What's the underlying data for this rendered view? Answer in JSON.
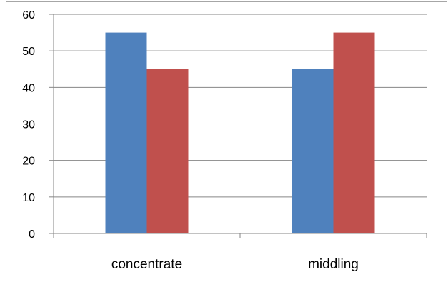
{
  "chart_data": {
    "type": "bar",
    "categories": [
      "concentrate",
      "middling"
    ],
    "series": [
      {
        "values": [
          55,
          45
        ],
        "color": "#4f81bd"
      },
      {
        "values": [
          45,
          55
        ],
        "color": "#c0504d"
      }
    ],
    "yticks": [
      "0",
      "10",
      "20",
      "30",
      "40",
      "50",
      "60"
    ],
    "ylim": [
      0,
      60
    ],
    "grid": true,
    "legend": "none"
  }
}
